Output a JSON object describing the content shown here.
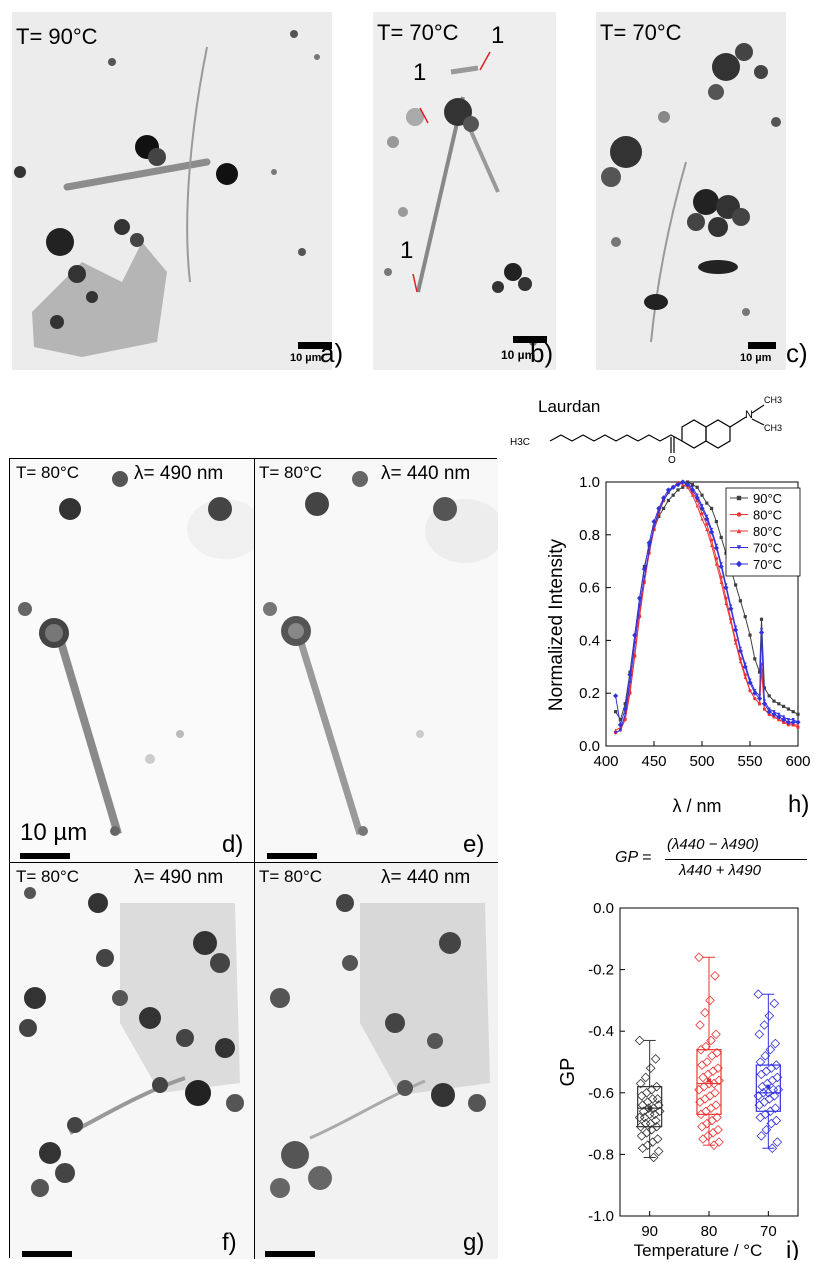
{
  "top_row": {
    "panel_a": {
      "temp": "T= 90°C",
      "scale": "10 µm",
      "letter": "a)"
    },
    "panel_b": {
      "temp": "T= 70°C",
      "scale": "10 µm",
      "letter": "b)",
      "marker1": "1",
      "marker2": "1",
      "marker3": "1"
    },
    "panel_c": {
      "temp": "T= 70°C",
      "scale": "10 µm",
      "letter": "c)"
    }
  },
  "fluor_grid": {
    "panel_d": {
      "temp": "T= 80°C",
      "wavelength": "λ= 490 nm",
      "scale": "10 µm",
      "letter": "d)"
    },
    "panel_e": {
      "temp": "T= 80°C",
      "wavelength": "λ= 440 nm",
      "letter": "e)"
    },
    "panel_f": {
      "temp": "T= 80°C",
      "wavelength": "λ= 490 nm",
      "letter": "f)"
    },
    "panel_g": {
      "temp": "T= 80°C",
      "wavelength": "λ= 440 nm",
      "letter": "g)"
    }
  },
  "laurdan": {
    "label": "Laurdan",
    "atoms": {
      "h3c": "H3C",
      "o": "O",
      "n": "N",
      "ch3_top": "CH3",
      "ch3_right": "CH3"
    }
  },
  "gp_formula": {
    "lhs": "GP =",
    "numerator": "(λ440 − λ490)",
    "denominator": "λ440 + λ490"
  },
  "chart_data": [
    {
      "type": "line",
      "letter": "h)",
      "xlabel": "λ / nm",
      "ylabel": "Normalized Intensity",
      "xlim": [
        400,
        600
      ],
      "ylim": [
        0.0,
        1.0
      ],
      "xticks": [
        "400",
        "450",
        "500",
        "550",
        "600"
      ],
      "yticks": [
        "0.0",
        "0.2",
        "0.4",
        "0.6",
        "0.8",
        "1.0"
      ],
      "legend_position": "top-right",
      "series": [
        {
          "name": "90°C",
          "color": "#404040",
          "marker": "square",
          "x": [
            410,
            415,
            420,
            425,
            430,
            435,
            440,
            445,
            450,
            455,
            460,
            465,
            470,
            475,
            480,
            485,
            490,
            495,
            500,
            505,
            510,
            515,
            520,
            525,
            530,
            535,
            540,
            545,
            550,
            555,
            560,
            562,
            565,
            570,
            575,
            580,
            585,
            590,
            595,
            600
          ],
          "y": [
            0.13,
            0.1,
            0.16,
            0.28,
            0.42,
            0.56,
            0.68,
            0.76,
            0.82,
            0.87,
            0.9,
            0.93,
            0.95,
            0.97,
            0.98,
            1.0,
            0.99,
            0.98,
            0.95,
            0.92,
            0.9,
            0.85,
            0.79,
            0.73,
            0.67,
            0.61,
            0.55,
            0.49,
            0.42,
            0.33,
            0.28,
            0.48,
            0.22,
            0.19,
            0.17,
            0.16,
            0.15,
            0.14,
            0.13,
            0.12
          ]
        },
        {
          "name": "80°C",
          "color": "#ee3333",
          "marker": "circle",
          "x": [
            410,
            415,
            420,
            425,
            430,
            435,
            440,
            445,
            450,
            455,
            460,
            465,
            470,
            475,
            480,
            485,
            490,
            495,
            500,
            505,
            510,
            515,
            520,
            525,
            530,
            535,
            540,
            545,
            550,
            555,
            560,
            562,
            565,
            570,
            575,
            580,
            585,
            590,
            595,
            600
          ],
          "y": [
            0.05,
            0.06,
            0.1,
            0.2,
            0.34,
            0.49,
            0.62,
            0.73,
            0.82,
            0.88,
            0.93,
            0.96,
            0.98,
            0.99,
            1.0,
            0.99,
            0.96,
            0.93,
            0.88,
            0.84,
            0.78,
            0.71,
            0.64,
            0.56,
            0.48,
            0.4,
            0.33,
            0.27,
            0.21,
            0.18,
            0.16,
            0.31,
            0.14,
            0.12,
            0.11,
            0.1,
            0.09,
            0.08,
            0.08,
            0.07
          ]
        },
        {
          "name": "80°C",
          "color": "#ee3333",
          "marker": "triangle",
          "x": [
            410,
            415,
            420,
            425,
            430,
            435,
            440,
            445,
            450,
            455,
            460,
            465,
            470,
            475,
            480,
            485,
            490,
            495,
            500,
            505,
            510,
            515,
            520,
            525,
            530,
            535,
            540,
            545,
            550,
            555,
            560,
            562,
            565,
            570,
            575,
            580,
            585,
            590,
            595,
            600
          ],
          "y": [
            0.06,
            0.07,
            0.11,
            0.21,
            0.35,
            0.5,
            0.63,
            0.74,
            0.83,
            0.89,
            0.93,
            0.96,
            0.98,
            1.0,
            0.99,
            0.98,
            0.95,
            0.91,
            0.86,
            0.82,
            0.76,
            0.69,
            0.62,
            0.54,
            0.47,
            0.39,
            0.32,
            0.26,
            0.21,
            0.18,
            0.16,
            0.29,
            0.14,
            0.12,
            0.11,
            0.1,
            0.09,
            0.09,
            0.08,
            0.08
          ]
        },
        {
          "name": "70°C",
          "color": "#3333dd",
          "marker": "triangle-down",
          "x": [
            410,
            415,
            420,
            425,
            430,
            435,
            440,
            445,
            450,
            455,
            460,
            465,
            470,
            475,
            480,
            485,
            490,
            495,
            500,
            505,
            510,
            515,
            520,
            525,
            530,
            535,
            540,
            545,
            550,
            555,
            560,
            562,
            565,
            570,
            575,
            580,
            585,
            590,
            595,
            600
          ],
          "y": [
            0.05,
            0.06,
            0.12,
            0.24,
            0.39,
            0.53,
            0.64,
            0.74,
            0.83,
            0.89,
            0.93,
            0.96,
            0.98,
            0.99,
            1.0,
            0.99,
            0.98,
            0.95,
            0.91,
            0.87,
            0.82,
            0.76,
            0.69,
            0.61,
            0.53,
            0.45,
            0.37,
            0.31,
            0.25,
            0.21,
            0.19,
            0.44,
            0.17,
            0.14,
            0.13,
            0.12,
            0.11,
            0.1,
            0.1,
            0.09
          ]
        },
        {
          "name": "70°C",
          "color": "#3333dd",
          "marker": "diamond",
          "x": [
            410,
            415,
            420,
            425,
            430,
            435,
            440,
            445,
            450,
            455,
            460,
            465,
            470,
            475,
            480,
            485,
            490,
            495,
            500,
            505,
            510,
            515,
            520,
            525,
            530,
            535,
            540,
            545,
            550,
            555,
            560,
            562,
            565,
            570,
            575,
            580,
            585,
            590,
            595,
            600
          ],
          "y": [
            0.19,
            0.08,
            0.14,
            0.27,
            0.42,
            0.56,
            0.67,
            0.77,
            0.85,
            0.9,
            0.94,
            0.97,
            0.98,
            0.99,
            1.0,
            0.99,
            0.97,
            0.94,
            0.9,
            0.86,
            0.81,
            0.75,
            0.68,
            0.6,
            0.52,
            0.44,
            0.36,
            0.3,
            0.24,
            0.2,
            0.18,
            0.43,
            0.16,
            0.13,
            0.12,
            0.11,
            0.1,
            0.09,
            0.09,
            0.09
          ]
        }
      ]
    },
    {
      "type": "box",
      "letter": "i)",
      "xlabel": "Temperature / °C",
      "ylabel": "GP",
      "ylim": [
        -1.0,
        0.0
      ],
      "yticks": [
        "0.0",
        "-0.2",
        "-0.4",
        "-0.6",
        "-0.8",
        "-1.0"
      ],
      "categories": [
        "90",
        "80",
        "70"
      ],
      "boxes": [
        {
          "category": "90",
          "color": "#333333",
          "min": -0.81,
          "q1": -0.71,
          "median": -0.65,
          "q3": -0.58,
          "max": -0.43,
          "mean": -0.65,
          "points": [
            -0.43,
            -0.49,
            -0.52,
            -0.55,
            -0.57,
            -0.58,
            -0.59,
            -0.6,
            -0.61,
            -0.62,
            -0.62,
            -0.63,
            -0.64,
            -0.64,
            -0.65,
            -0.65,
            -0.66,
            -0.66,
            -0.67,
            -0.67,
            -0.68,
            -0.68,
            -0.69,
            -0.7,
            -0.7,
            -0.71,
            -0.71,
            -0.72,
            -0.73,
            -0.74,
            -0.75,
            -0.76,
            -0.77,
            -0.78,
            -0.79,
            -0.81
          ]
        },
        {
          "category": "80",
          "color": "#ee3333",
          "min": -0.77,
          "q1": -0.67,
          "median": -0.57,
          "q3": -0.46,
          "max": -0.16,
          "mean": -0.56,
          "points": [
            -0.16,
            -0.22,
            -0.3,
            -0.34,
            -0.38,
            -0.41,
            -0.43,
            -0.45,
            -0.46,
            -0.47,
            -0.48,
            -0.5,
            -0.51,
            -0.52,
            -0.53,
            -0.54,
            -0.55,
            -0.56,
            -0.57,
            -0.57,
            -0.58,
            -0.59,
            -0.6,
            -0.61,
            -0.62,
            -0.63,
            -0.64,
            -0.65,
            -0.66,
            -0.67,
            -0.68,
            -0.69,
            -0.7,
            -0.71,
            -0.72,
            -0.73,
            -0.74,
            -0.75,
            -0.76,
            -0.77
          ]
        },
        {
          "category": "70",
          "color": "#3333dd",
          "min": -0.78,
          "q1": -0.66,
          "median": -0.6,
          "q3": -0.51,
          "max": -0.28,
          "mean": -0.58,
          "points": [
            -0.28,
            -0.31,
            -0.35,
            -0.38,
            -0.41,
            -0.44,
            -0.46,
            -0.48,
            -0.5,
            -0.51,
            -0.52,
            -0.53,
            -0.54,
            -0.55,
            -0.56,
            -0.57,
            -0.58,
            -0.59,
            -0.59,
            -0.6,
            -0.6,
            -0.61,
            -0.61,
            -0.62,
            -0.63,
            -0.64,
            -0.65,
            -0.66,
            -0.67,
            -0.68,
            -0.69,
            -0.7,
            -0.72,
            -0.74,
            -0.76,
            -0.78
          ]
        }
      ]
    }
  ]
}
